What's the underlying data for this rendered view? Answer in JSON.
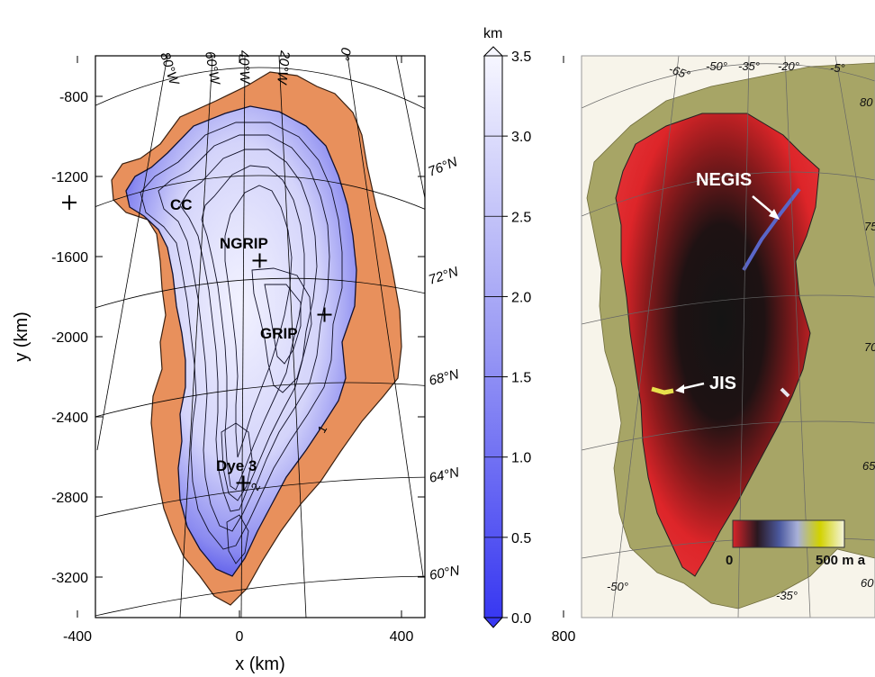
{
  "left_map": {
    "xlabel": "x (km)",
    "ylabel": "y (km)",
    "x_ticks": [
      "-400",
      "0",
      "400",
      "800"
    ],
    "y_ticks": [
      "-800",
      "-1200",
      "-1600",
      "-2000",
      "-2400",
      "-2800",
      "-3200"
    ],
    "longitude_labels": [
      "80°W",
      "60°W",
      "40°W",
      "20°W",
      "0°"
    ],
    "latitude_labels": [
      "76°N",
      "72°N",
      "68°N",
      "64°N",
      "60°N"
    ],
    "sites": [
      {
        "name": "CC",
        "x_km": -420,
        "y_km": -1330
      },
      {
        "name": "NGRIP",
        "x_km": 50,
        "y_km": -1620
      },
      {
        "name": "GRIP",
        "x_km": 210,
        "y_km": -1890
      },
      {
        "name": "Dye 3",
        "x_km": 10,
        "y_km": -2730
      }
    ],
    "contour_marks": [
      "1",
      "2"
    ],
    "colorbar": {
      "unit": "km",
      "ticks": [
        "3.5",
        "3.0",
        "2.5",
        "2.0",
        "1.5",
        "1.0",
        "0.5",
        "0.0"
      ],
      "range": [
        0.0,
        3.5
      ],
      "low_color": "#3a3af0",
      "high_color": "#f4f4ff"
    },
    "colors": {
      "land": "#e8905c",
      "ice_low": "#5050ee",
      "ice_high": "#eeeefe"
    }
  },
  "right_map": {
    "longitude_labels": [
      "-65°",
      "-50°",
      "-35°",
      "-20°",
      "-5°",
      "-50°",
      "-35°"
    ],
    "latitude_labels": [
      "80",
      "75",
      "70",
      "65",
      "60"
    ],
    "annotations": [
      "NEGIS",
      "JIS"
    ],
    "velocity_bar": {
      "min_label": "0",
      "max_label": "500 m a"
    },
    "colors": {
      "land": "#a7a566",
      "slow": "#e0262a",
      "interior": "#111111",
      "fast": "#d8d800"
    }
  }
}
